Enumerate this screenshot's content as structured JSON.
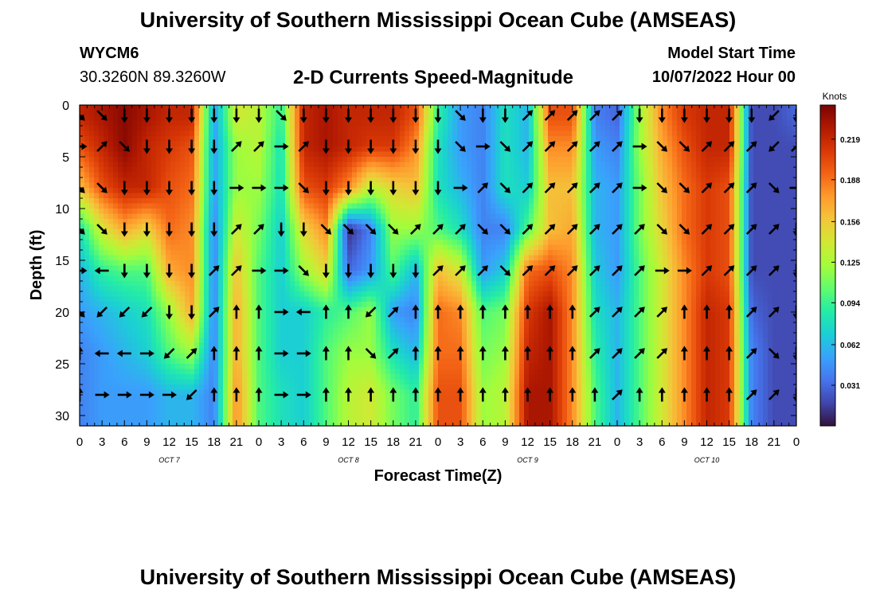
{
  "header": {
    "title": "University of Southern Mississippi Ocean Cube (AMSEAS)",
    "footer_title": "University of Southern Mississippi Ocean Cube (AMSEAS)",
    "station_id": "WYCM6",
    "coordinates": "30.3260N  89.3260W",
    "subtitle": "2-D Currents Speed-Magnitude",
    "model_start_label": "Model Start Time",
    "model_start_value": "10/07/2022 Hour 00"
  },
  "colors": {
    "scale": [
      "#30123b",
      "#4145ab",
      "#4675ed",
      "#39a2fc",
      "#1bcfd4",
      "#24eca6",
      "#61fc6c",
      "#a4fc3b",
      "#d1e834",
      "#f3c63a",
      "#fe9b2d",
      "#f36315",
      "#d93806",
      "#b11901",
      "#7a0403"
    ]
  },
  "chart_data": {
    "type": "heatmap",
    "title": "2-D Currents Speed-Magnitude",
    "xlabel": "Forecast Time(Z)",
    "ylabel": "Depth (ft)",
    "colorbar_label": "Knots",
    "colorbar_ticks": [
      "0.219",
      "0.188",
      "0.156",
      "0.125",
      "0.094",
      "0.062",
      "0.031"
    ],
    "colorbar_tick_values": [
      0.219,
      0.188,
      0.156,
      0.125,
      0.094,
      0.062,
      0.031
    ],
    "colorbar_range": [
      0.0,
      0.245
    ],
    "x_hours": [
      0,
      3,
      6,
      9,
      12,
      15,
      18,
      21,
      24,
      27,
      30,
      33,
      36,
      39,
      42,
      45,
      48,
      51,
      54,
      57,
      60,
      63,
      66,
      69,
      72,
      75,
      78,
      81,
      84,
      87,
      90,
      93,
      96
    ],
    "x_tick_labels": [
      "0",
      "3",
      "6",
      "9",
      "12",
      "15",
      "18",
      "21",
      "0",
      "3",
      "6",
      "9",
      "12",
      "15",
      "18",
      "21",
      "0",
      "3",
      "6",
      "9",
      "12",
      "15",
      "18",
      "21",
      "0",
      "3",
      "6",
      "9",
      "12",
      "15",
      "18",
      "21",
      "0"
    ],
    "day_labels": [
      {
        "label": "OCT 7",
        "hour": 12
      },
      {
        "label": "OCT 8",
        "hour": 36
      },
      {
        "label": "OCT 9",
        "hour": 60
      },
      {
        "label": "OCT 10",
        "hour": 84
      }
    ],
    "xlim": [
      0,
      96
    ],
    "ylim": [
      0,
      31
    ],
    "y_ticks": [
      0,
      5,
      10,
      15,
      20,
      25,
      30
    ],
    "y_tick_labels": [
      "0",
      "5",
      "10",
      "15",
      "20",
      "25",
      "30"
    ],
    "depths": [
      1,
      4,
      8,
      12,
      16,
      20,
      24,
      28
    ],
    "speed": [
      [
        0.22,
        0.23,
        0.24,
        0.23,
        0.22,
        0.22,
        0.05,
        0.14,
        0.13,
        0.09,
        0.22,
        0.23,
        0.22,
        0.22,
        0.22,
        0.2,
        0.09,
        0.05,
        0.04,
        0.08,
        0.06,
        0.2,
        0.2,
        0.04,
        0.03,
        0.12,
        0.18,
        0.21,
        0.22,
        0.22,
        0.02,
        0.02,
        0.03
      ],
      [
        0.2,
        0.22,
        0.24,
        0.22,
        0.21,
        0.2,
        0.05,
        0.12,
        0.13,
        0.08,
        0.22,
        0.23,
        0.22,
        0.21,
        0.21,
        0.18,
        0.08,
        0.05,
        0.04,
        0.08,
        0.06,
        0.18,
        0.18,
        0.05,
        0.04,
        0.12,
        0.17,
        0.2,
        0.22,
        0.22,
        0.02,
        0.02,
        0.02
      ],
      [
        0.16,
        0.2,
        0.22,
        0.22,
        0.2,
        0.19,
        0.05,
        0.12,
        0.12,
        0.08,
        0.2,
        0.21,
        0.18,
        0.13,
        0.15,
        0.16,
        0.08,
        0.06,
        0.04,
        0.08,
        0.07,
        0.16,
        0.16,
        0.06,
        0.05,
        0.11,
        0.16,
        0.19,
        0.21,
        0.2,
        0.02,
        0.02,
        0.02
      ],
      [
        0.08,
        0.14,
        0.17,
        0.15,
        0.19,
        0.18,
        0.04,
        0.14,
        0.11,
        0.07,
        0.15,
        0.18,
        0.01,
        0.04,
        0.12,
        0.12,
        0.1,
        0.08,
        0.04,
        0.04,
        0.1,
        0.16,
        0.17,
        0.06,
        0.05,
        0.11,
        0.15,
        0.19,
        0.21,
        0.2,
        0.02,
        0.02,
        0.02
      ],
      [
        0.06,
        0.09,
        0.1,
        0.1,
        0.17,
        0.18,
        0.04,
        0.16,
        0.1,
        0.07,
        0.12,
        0.15,
        0.03,
        0.05,
        0.1,
        0.06,
        0.16,
        0.14,
        0.05,
        0.07,
        0.19,
        0.2,
        0.18,
        0.07,
        0.05,
        0.1,
        0.14,
        0.18,
        0.21,
        0.2,
        0.02,
        0.02,
        0.02
      ],
      [
        0.05,
        0.06,
        0.07,
        0.08,
        0.12,
        0.17,
        0.04,
        0.17,
        0.1,
        0.07,
        0.07,
        0.09,
        0.1,
        0.12,
        0.05,
        0.04,
        0.19,
        0.18,
        0.1,
        0.11,
        0.21,
        0.23,
        0.18,
        0.08,
        0.06,
        0.1,
        0.14,
        0.18,
        0.22,
        0.21,
        0.03,
        0.02,
        0.02
      ],
      [
        0.04,
        0.05,
        0.06,
        0.07,
        0.1,
        0.12,
        0.04,
        0.17,
        0.1,
        0.07,
        0.07,
        0.1,
        0.12,
        0.12,
        0.08,
        0.06,
        0.19,
        0.19,
        0.11,
        0.12,
        0.22,
        0.23,
        0.18,
        0.09,
        0.06,
        0.1,
        0.14,
        0.18,
        0.22,
        0.21,
        0.04,
        0.02,
        0.02
      ],
      [
        0.04,
        0.05,
        0.05,
        0.05,
        0.06,
        0.06,
        0.04,
        0.18,
        0.1,
        0.08,
        0.07,
        0.1,
        0.13,
        0.14,
        0.11,
        0.09,
        0.2,
        0.2,
        0.12,
        0.13,
        0.23,
        0.23,
        0.18,
        0.1,
        0.06,
        0.1,
        0.14,
        0.18,
        0.22,
        0.21,
        0.04,
        0.02,
        0.02
      ]
    ],
    "direction_deg": [
      [
        135,
        135,
        180,
        180,
        180,
        180,
        180,
        180,
        180,
        135,
        180,
        180,
        180,
        180,
        180,
        180,
        180,
        135,
        180,
        180,
        45,
        45,
        45,
        45,
        45,
        180,
        180,
        180,
        180,
        180,
        180,
        225,
        180
      ],
      [
        90,
        45,
        135,
        180,
        180,
        180,
        180,
        45,
        45,
        90,
        45,
        180,
        180,
        180,
        180,
        180,
        180,
        135,
        90,
        135,
        45,
        45,
        45,
        45,
        45,
        90,
        135,
        135,
        45,
        45,
        45,
        225,
        45
      ],
      [
        135,
        135,
        180,
        180,
        180,
        180,
        180,
        90,
        90,
        90,
        135,
        180,
        180,
        180,
        180,
        180,
        180,
        90,
        45,
        135,
        45,
        45,
        45,
        45,
        45,
        90,
        135,
        135,
        45,
        45,
        45,
        135,
        90
      ],
      [
        135,
        135,
        180,
        180,
        180,
        180,
        180,
        45,
        45,
        180,
        180,
        135,
        135,
        135,
        135,
        45,
        45,
        45,
        135,
        135,
        45,
        45,
        45,
        45,
        45,
        45,
        135,
        135,
        45,
        45,
        45,
        45,
        180
      ],
      [
        90,
        270,
        180,
        180,
        180,
        180,
        45,
        45,
        90,
        90,
        135,
        180,
        180,
        180,
        180,
        180,
        45,
        45,
        45,
        135,
        45,
        45,
        45,
        45,
        45,
        45,
        90,
        90,
        45,
        45,
        45,
        45,
        180
      ],
      [
        135,
        225,
        225,
        225,
        180,
        180,
        45,
        0,
        0,
        90,
        270,
        0,
        0,
        225,
        45,
        0,
        0,
        0,
        0,
        0,
        0,
        0,
        0,
        45,
        45,
        45,
        45,
        0,
        0,
        0,
        45,
        45,
        180
      ],
      [
        0,
        270,
        270,
        90,
        225,
        45,
        0,
        0,
        0,
        90,
        90,
        0,
        0,
        135,
        45,
        0,
        0,
        0,
        0,
        0,
        0,
        0,
        0,
        45,
        45,
        45,
        45,
        0,
        0,
        0,
        45,
        135,
        180
      ],
      [
        0,
        90,
        90,
        90,
        90,
        225,
        0,
        0,
        0,
        90,
        90,
        0,
        0,
        0,
        0,
        0,
        0,
        0,
        0,
        0,
        0,
        0,
        0,
        0,
        45,
        0,
        0,
        0,
        0,
        0,
        45,
        45,
        180
      ]
    ]
  }
}
